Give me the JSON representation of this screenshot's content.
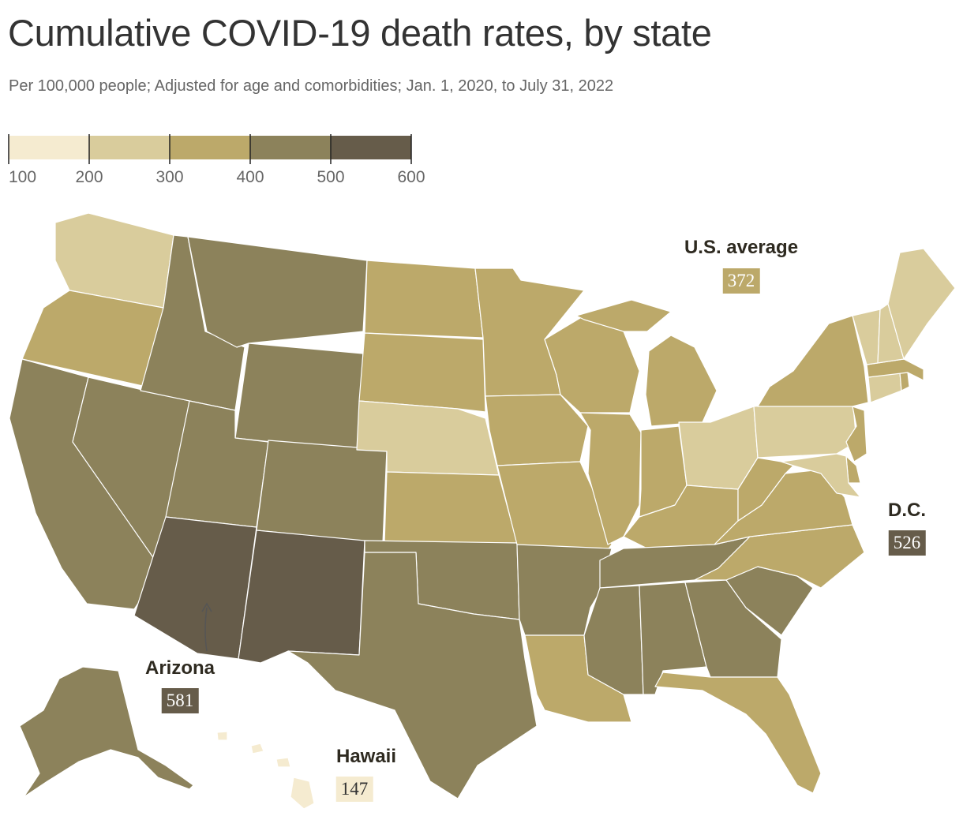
{
  "header": {
    "title": "Cumulative COVID-19 death rates, by state",
    "subtitle": "Per 100,000 people; Adjusted for age and comorbidities; Jan. 1, 2020, to July 31, 2022"
  },
  "legend": {
    "ticks": [
      "100",
      "200",
      "300",
      "400",
      "500",
      "600"
    ],
    "bins": [
      {
        "range": [
          100,
          200
        ],
        "color": "#f5ebd0"
      },
      {
        "range": [
          200,
          300
        ],
        "color": "#d9cc9c"
      },
      {
        "range": [
          300,
          400
        ],
        "color": "#bca96a"
      },
      {
        "range": [
          400,
          500
        ],
        "color": "#8c825b"
      },
      {
        "range": [
          500,
          600
        ],
        "color": "#665c4a"
      }
    ]
  },
  "annotations": {
    "us_average": {
      "label": "U.S. average",
      "value": "372"
    },
    "dc": {
      "label": "D.C.",
      "value": "526"
    },
    "arizona": {
      "label": "Arizona",
      "value": "581"
    },
    "hawaii": {
      "label": "Hawaii",
      "value": "147"
    }
  },
  "colors": {
    "c1": "#f5ebd0",
    "c2": "#d9cc9c",
    "c3": "#bca96a",
    "c4": "#8c825b",
    "c5": "#665c4a",
    "border": "#ffffff"
  },
  "states_bin": {
    "WA": 2,
    "OR": 3,
    "CA": 4,
    "NV": 4,
    "ID": 4,
    "MT": 4,
    "WY": 4,
    "UT": 4,
    "CO": 4,
    "AZ": 5,
    "NM": 5,
    "ND": 3,
    "SD": 3,
    "NE": 2,
    "KS": 3,
    "OK": 4,
    "TX": 4,
    "MN": 3,
    "IA": 3,
    "MO": 3,
    "AR": 4,
    "LA": 3,
    "WI": 3,
    "IL": 3,
    "MI": 3,
    "IN": 3,
    "OH": 2,
    "KY": 3,
    "TN": 4,
    "MS": 4,
    "AL": 4,
    "GA": 4,
    "FL": 3,
    "SC": 4,
    "NC": 3,
    "VA": 3,
    "WV": 3,
    "PA": 2,
    "NY": 3,
    "NJ": 3,
    "DE": 3,
    "MD": 2,
    "CT": 2,
    "RI": 3,
    "MA": 3,
    "VT": 2,
    "NH": 2,
    "ME": 2,
    "AK": 4,
    "HI": 1
  }
}
